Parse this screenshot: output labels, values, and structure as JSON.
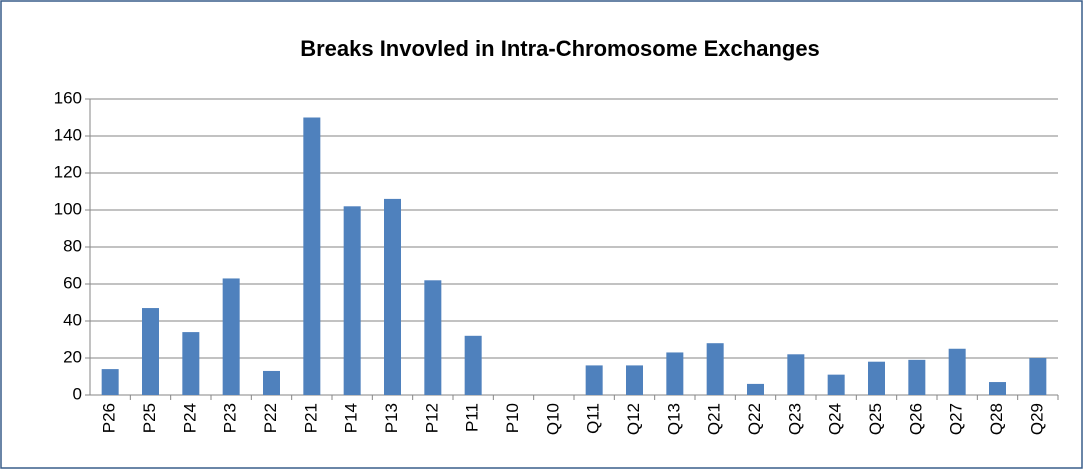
{
  "chart_data": {
    "type": "bar",
    "title": "Breaks Invovled in Intra-Chromosome Exchanges",
    "categories": [
      "P26",
      "P25",
      "P24",
      "P23",
      "P22",
      "P21",
      "P14",
      "P13",
      "P12",
      "P11",
      "P10",
      "Q10",
      "Q11",
      "Q12",
      "Q13",
      "Q21",
      "Q22",
      "Q23",
      "Q24",
      "Q25",
      "Q26",
      "Q27",
      "Q28",
      "Q29"
    ],
    "values": [
      14,
      47,
      34,
      63,
      13,
      150,
      102,
      106,
      62,
      32,
      0,
      0,
      16,
      16,
      23,
      28,
      6,
      22,
      11,
      18,
      19,
      25,
      7,
      20
    ],
    "color": "#4f81bd",
    "ylim": [
      0,
      160
    ],
    "yticks": [
      0,
      20,
      40,
      60,
      80,
      100,
      120,
      140,
      160
    ],
    "grid": true
  }
}
